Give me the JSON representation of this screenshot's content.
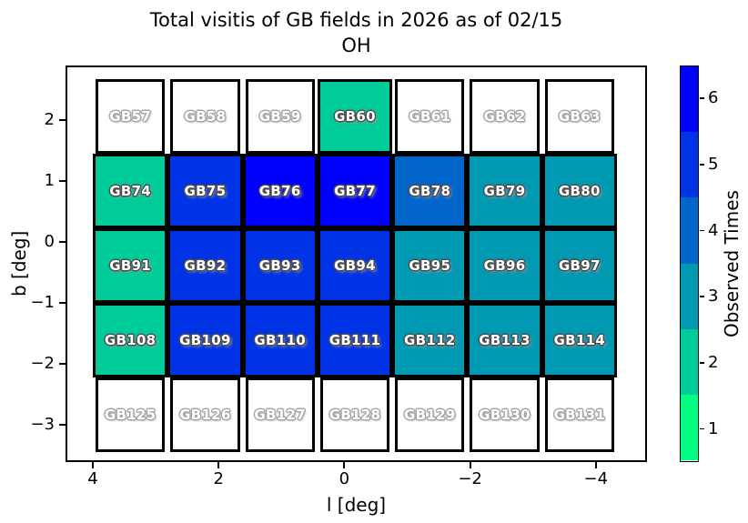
{
  "title": {
    "line1": "Total visitis of GB fields in 2026 as of 02/15",
    "line2": "OH"
  },
  "axes": {
    "xlabel": "l [deg]",
    "ylabel": "b [deg]",
    "xtick_labels": [
      "4",
      "2",
      "0",
      "−2",
      "−4"
    ],
    "ytick_labels": [
      "2",
      "1",
      "0",
      "−1",
      "−2",
      "−3"
    ]
  },
  "colorbar": {
    "label": "Observed Times",
    "tick_labels_top_to_bottom": [
      "6",
      "5",
      "4",
      "3",
      "2",
      "1"
    ]
  },
  "value_colors": {
    "0": "#ffffff",
    "1": "#00ff80",
    "2": "#00cc99",
    "3": "#0099b2",
    "4": "#0066cc",
    "5": "#0033e5",
    "6": "#0000ff"
  },
  "grid": {
    "rows": [
      {
        "cells": [
          {
            "field": "GB57",
            "value": 0
          },
          {
            "field": "GB58",
            "value": 0
          },
          {
            "field": "GB59",
            "value": 0
          },
          {
            "field": "GB60",
            "value": 2
          },
          {
            "field": "GB61",
            "value": 0
          },
          {
            "field": "GB62",
            "value": 0
          },
          {
            "field": "GB63",
            "value": 0
          }
        ]
      },
      {
        "cells": [
          {
            "field": "GB74",
            "value": 2
          },
          {
            "field": "GB75",
            "value": 5
          },
          {
            "field": "GB76",
            "value": 6
          },
          {
            "field": "GB77",
            "value": 6
          },
          {
            "field": "GB78",
            "value": 4
          },
          {
            "field": "GB79",
            "value": 3
          },
          {
            "field": "GB80",
            "value": 3
          }
        ]
      },
      {
        "cells": [
          {
            "field": "GB91",
            "value": 2
          },
          {
            "field": "GB92",
            "value": 5
          },
          {
            "field": "GB93",
            "value": 5
          },
          {
            "field": "GB94",
            "value": 5
          },
          {
            "field": "GB95",
            "value": 3
          },
          {
            "field": "GB96",
            "value": 3
          },
          {
            "field": "GB97",
            "value": 3
          }
        ]
      },
      {
        "cells": [
          {
            "field": "GB108",
            "value": 2
          },
          {
            "field": "GB109",
            "value": 5
          },
          {
            "field": "GB110",
            "value": 5
          },
          {
            "field": "GB111",
            "value": 5
          },
          {
            "field": "GB112",
            "value": 3
          },
          {
            "field": "GB113",
            "value": 3
          },
          {
            "field": "GB114",
            "value": 3
          }
        ]
      },
      {
        "cells": [
          {
            "field": "GB125",
            "value": 0
          },
          {
            "field": "GB126",
            "value": 0
          },
          {
            "field": "GB127",
            "value": 0
          },
          {
            "field": "GB128",
            "value": 0
          },
          {
            "field": "GB129",
            "value": 0
          },
          {
            "field": "GB130",
            "value": 0
          },
          {
            "field": "GB131",
            "value": 0
          }
        ]
      }
    ]
  },
  "chart_data": {
    "type": "heatmap",
    "title": "Total visitis of GB fields in 2026 as of 02/15\nOH",
    "xlabel": "l [deg]",
    "ylabel": "b [deg]",
    "xticks": [
      4,
      2,
      0,
      -2,
      -4
    ],
    "yticks": [
      2,
      1,
      0,
      -1,
      -2,
      -3
    ],
    "x_axis_reversed": true,
    "colorbar_label": "Observed Times",
    "colorbar_ticks": [
      1,
      2,
      3,
      4,
      5,
      6
    ],
    "colormap": "winter_r (green=low, blue=high), discrete 6 levels",
    "note": "value 0 = unobserved field drawn as white cell with outlined label",
    "rows": [
      {
        "fields": [
          "GB57",
          "GB58",
          "GB59",
          "GB60",
          "GB61",
          "GB62",
          "GB63"
        ],
        "values": [
          0,
          0,
          0,
          2,
          0,
          0,
          0
        ]
      },
      {
        "fields": [
          "GB74",
          "GB75",
          "GB76",
          "GB77",
          "GB78",
          "GB79",
          "GB80"
        ],
        "values": [
          2,
          5,
          6,
          6,
          4,
          3,
          3
        ]
      },
      {
        "fields": [
          "GB91",
          "GB92",
          "GB93",
          "GB94",
          "GB95",
          "GB96",
          "GB97"
        ],
        "values": [
          2,
          5,
          5,
          5,
          3,
          3,
          3
        ]
      },
      {
        "fields": [
          "GB108",
          "GB109",
          "GB110",
          "GB111",
          "GB112",
          "GB113",
          "GB114"
        ],
        "values": [
          2,
          5,
          5,
          5,
          3,
          3,
          3
        ]
      },
      {
        "fields": [
          "GB125",
          "GB126",
          "GB127",
          "GB128",
          "GB129",
          "GB130",
          "GB131"
        ],
        "values": [
          0,
          0,
          0,
          0,
          0,
          0,
          0
        ]
      }
    ]
  }
}
